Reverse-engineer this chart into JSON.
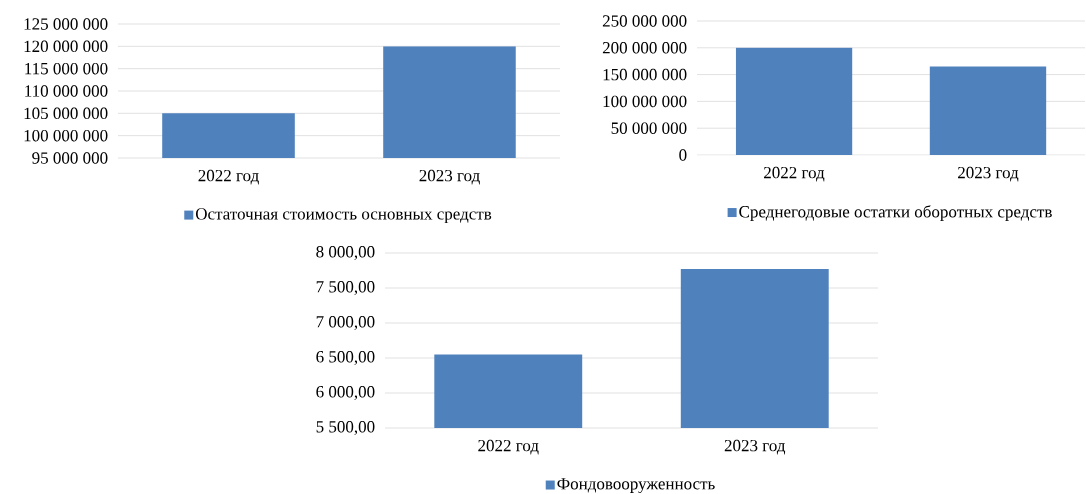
{
  "chart_data": [
    {
      "type": "bar",
      "categories": [
        "2022 год",
        "2023 год"
      ],
      "series": [
        {
          "name": "Остаточная стоимость основных средств",
          "color": "#4f81bd",
          "values": [
            105000000,
            120000000
          ]
        }
      ],
      "ylim": [
        95000000,
        125000000
      ],
      "yticks": [
        {
          "value": 95000000,
          "label": "95 000 000"
        },
        {
          "value": 100000000,
          "label": "100 000 000"
        },
        {
          "value": 105000000,
          "label": "105 000 000"
        },
        {
          "value": 110000000,
          "label": "110 000 000"
        },
        {
          "value": 115000000,
          "label": "115 000 000"
        },
        {
          "value": 120000000,
          "label": "120 000 000"
        },
        {
          "value": 125000000,
          "label": "125 000 000"
        }
      ],
      "grid": "y",
      "legend": "bottom"
    },
    {
      "type": "bar",
      "categories": [
        "2022 год",
        "2023 год"
      ],
      "series": [
        {
          "name": "Среднегодовые остатки оборотных средств",
          "color": "#4f81bd",
          "values": [
            200000000,
            165000000
          ]
        }
      ],
      "ylim": [
        0,
        250000000
      ],
      "yticks": [
        0,
        {
          "value": 50000000,
          "label": "50 000 000"
        },
        {
          "value": 100000000,
          "label": "100 000 000"
        },
        {
          "value": 150000000,
          "label": "150 000 000"
        },
        {
          "value": 200000000,
          "label": "200 000 000"
        },
        {
          "value": 250000000,
          "label": "250 000 000"
        }
      ],
      "grid": "y",
      "legend": "bottom"
    },
    {
      "type": "bar",
      "categories": [
        "2022 год",
        "2023 год"
      ],
      "series": [
        {
          "name": "Фондовооруженность",
          "color": "#4f81bd",
          "values": [
            6550,
            7770
          ]
        }
      ],
      "ylim": [
        5500,
        8000
      ],
      "yticks": [
        {
          "value": 5500,
          "label": "5 500,00"
        },
        {
          "value": 6000,
          "label": "6 000,00"
        },
        {
          "value": 6500,
          "label": "6 500,00"
        },
        {
          "value": 7000,
          "label": "7 000,00"
        },
        {
          "value": 7500,
          "label": "7 500,00"
        },
        {
          "value": 8000,
          "label": "8 000,00"
        }
      ],
      "grid": "y",
      "legend": "bottom"
    }
  ]
}
